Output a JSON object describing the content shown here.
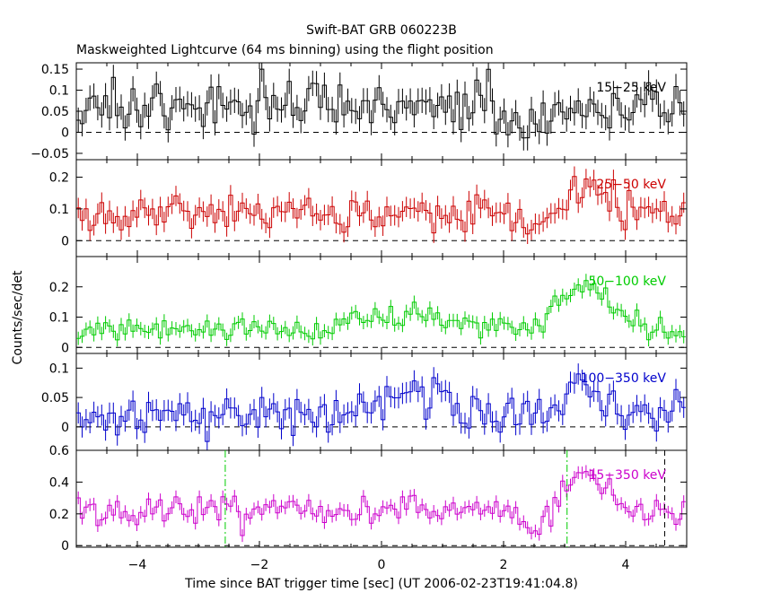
{
  "chart_data": {
    "type": "line",
    "title": "Swift-BAT GRB 060223B",
    "subtitle": "Maskweighted Lightcurve (64 ms binning) using the flight position",
    "xlabel": "Time since BAT trigger time [sec] (UT 2006-02-23T19:41:04.8)",
    "ylabel": "Counts/sec/det",
    "xlim": [
      -5,
      5
    ],
    "xticks": [
      -4,
      -2,
      0,
      2,
      4
    ],
    "xtick_labels": [
      "−4",
      "−2",
      "0",
      "2",
      "4"
    ],
    "bin_width_sec": 0.064,
    "series_seed": 20060223,
    "panels": [
      {
        "name": "15-25 keV",
        "label": "15−25 keV",
        "color": "#000000",
        "ylim": [
          -0.065,
          0.165
        ],
        "yticks": [
          -0.05,
          0,
          0.05,
          0.1,
          0.15
        ],
        "ytick_labels": [
          "−0.05",
          "0",
          "0.05",
          "0.1",
          "0.15"
        ],
        "zero_line": true,
        "baseline": 0.065,
        "noise": 0.032,
        "error_bar": 0.03,
        "pulse": {
          "center": 2.5,
          "width": 0.35,
          "amplitude": -0.06
        },
        "pulse2": null
      },
      {
        "name": "25-50 keV",
        "label": "25−50 keV",
        "color": "#cc0000",
        "ylim": [
          -0.05,
          0.255
        ],
        "yticks": [
          0,
          0.1,
          0.2
        ],
        "ytick_labels": [
          "0",
          "0.1",
          "0.2"
        ],
        "zero_line": true,
        "baseline": 0.085,
        "noise": 0.03,
        "error_bar": 0.032,
        "pulse": {
          "center": 3.4,
          "width": 0.55,
          "amplitude": 0.07
        },
        "pulse2": {
          "center": 2.5,
          "width": 0.35,
          "amplitude": -0.05
        }
      },
      {
        "name": "50-100 keV",
        "label": "50−100 keV",
        "color": "#00cc00",
        "ylim": [
          -0.02,
          0.3
        ],
        "yticks": [
          0,
          0.1,
          0.2
        ],
        "ytick_labels": [
          "0",
          "0.1",
          "0.2"
        ],
        "zero_line": true,
        "baseline": 0.055,
        "noise": 0.02,
        "error_bar": 0.022,
        "pulse": {
          "center": 3.35,
          "width": 0.6,
          "amplitude": 0.15
        },
        "pulse2": {
          "center": 0.3,
          "width": 1.2,
          "amplitude": 0.05
        }
      },
      {
        "name": "100-350 keV",
        "label": "100−350 keV",
        "color": "#0000cc",
        "ylim": [
          -0.04,
          0.125
        ],
        "yticks": [
          0,
          0.05,
          0.1
        ],
        "ytick_labels": [
          "0",
          "0.05",
          "0.1"
        ],
        "zero_line": true,
        "baseline": 0.018,
        "noise": 0.017,
        "error_bar": 0.018,
        "pulse": {
          "center": 3.3,
          "width": 0.5,
          "amplitude": 0.05
        },
        "pulse2": {
          "center": 0.5,
          "width": 0.8,
          "amplitude": 0.03
        }
      },
      {
        "name": "15-350 keV",
        "label": "15−350 keV",
        "color": "#cc00cc",
        "ylim": [
          -0.01,
          0.6
        ],
        "yticks": [
          0,
          0.2,
          0.4,
          0.6
        ],
        "ytick_labels": [
          "0",
          "0.2",
          "0.4",
          "0.6"
        ],
        "zero_line": true,
        "baseline": 0.22,
        "noise": 0.05,
        "error_bar": 0.04,
        "pulse": {
          "center": 3.35,
          "width": 0.5,
          "amplitude": 0.25
        },
        "pulse2": {
          "center": 2.6,
          "width": 0.3,
          "amplitude": -0.12
        },
        "vlines": [
          {
            "x": -2.56,
            "color": "#00cc00",
            "style": "dashdot"
          },
          {
            "x": 3.04,
            "color": "#00cc00",
            "style": "dashdot"
          },
          {
            "x": 4.64,
            "color": "#000000",
            "style": "dash"
          }
        ]
      }
    ]
  }
}
